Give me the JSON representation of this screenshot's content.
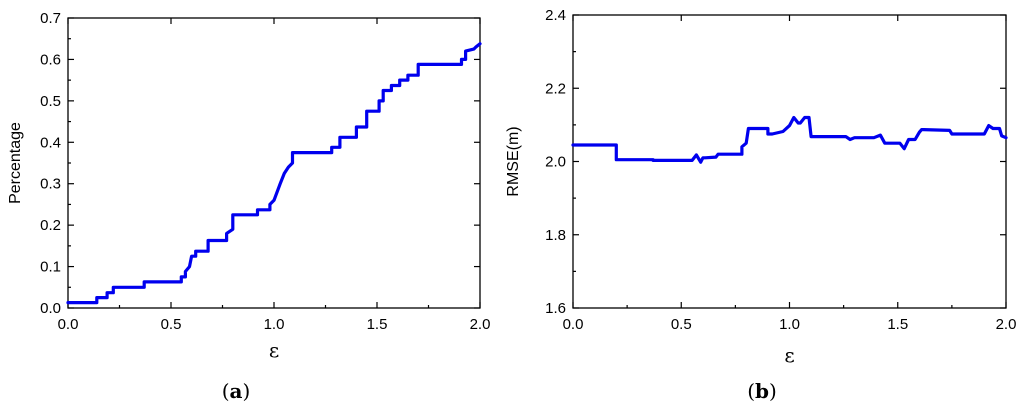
{
  "panels": [
    {
      "caption_letter": "a",
      "chart_data": {
        "type": "line",
        "title": "",
        "xlabel": "ε",
        "ylabel": "Percentage",
        "xlim": [
          0.0,
          2.0
        ],
        "ylim": [
          0.0,
          0.7
        ],
        "xticks": [
          0.0,
          0.5,
          1.0,
          1.5,
          2.0
        ],
        "xtick_labels": [
          "0.0",
          "0.5",
          "1.0",
          "1.5",
          "2.0"
        ],
        "yticks": [
          0.0,
          0.1,
          0.2,
          0.3,
          0.4,
          0.5,
          0.6,
          0.7
        ],
        "ytick_labels": [
          "0.0",
          "0.1",
          "0.2",
          "0.3",
          "0.4",
          "0.5",
          "0.6",
          "0.7"
        ],
        "grid": false,
        "series": [
          {
            "color": "#0000ee",
            "x": [
              0.0,
              0.14,
              0.14,
              0.19,
              0.19,
              0.22,
              0.22,
              0.37,
              0.37,
              0.55,
              0.55,
              0.57,
              0.57,
              0.59,
              0.6,
              0.62,
              0.62,
              0.68,
              0.68,
              0.77,
              0.77,
              0.8,
              0.8,
              0.92,
              0.92,
              0.98,
              0.98,
              1.0,
              1.03,
              1.05,
              1.07,
              1.09,
              1.09,
              1.28,
              1.28,
              1.32,
              1.32,
              1.4,
              1.4,
              1.45,
              1.45,
              1.51,
              1.51,
              1.53,
              1.53,
              1.57,
              1.57,
              1.61,
              1.61,
              1.65,
              1.65,
              1.7,
              1.7,
              1.91,
              1.91,
              1.93,
              1.93,
              1.97,
              1.98,
              2.0
            ],
            "y": [
              0.013,
              0.013,
              0.025,
              0.025,
              0.037,
              0.037,
              0.05,
              0.05,
              0.063,
              0.063,
              0.075,
              0.075,
              0.088,
              0.1,
              0.125,
              0.125,
              0.137,
              0.137,
              0.163,
              0.163,
              0.18,
              0.19,
              0.225,
              0.225,
              0.237,
              0.237,
              0.25,
              0.26,
              0.3,
              0.325,
              0.34,
              0.35,
              0.375,
              0.375,
              0.388,
              0.388,
              0.412,
              0.412,
              0.437,
              0.437,
              0.475,
              0.475,
              0.5,
              0.5,
              0.525,
              0.525,
              0.537,
              0.537,
              0.55,
              0.55,
              0.562,
              0.562,
              0.588,
              0.588,
              0.6,
              0.6,
              0.62,
              0.625,
              0.63,
              0.638
            ]
          }
        ]
      }
    },
    {
      "caption_letter": "b",
      "chart_data": {
        "type": "line",
        "title": "",
        "xlabel": "ε",
        "ylabel": "RMSE(m)",
        "xlim": [
          0.0,
          2.0
        ],
        "ylim": [
          1.6,
          2.4
        ],
        "xticks": [
          0.0,
          0.5,
          1.0,
          1.5,
          2.0
        ],
        "xtick_labels": [
          "0.0",
          "0.5",
          "1.0",
          "1.5",
          "2.0"
        ],
        "yticks": [
          1.6,
          1.8,
          2.0,
          2.2,
          2.4
        ],
        "ytick_labels": [
          "1.6",
          "1.8",
          "2.0",
          "2.2",
          "2.4"
        ],
        "grid": false,
        "series": [
          {
            "color": "#0000ee",
            "x": [
              0.0,
              0.2,
              0.2,
              0.37,
              0.37,
              0.55,
              0.57,
              0.59,
              0.6,
              0.61,
              0.66,
              0.67,
              0.7,
              0.7,
              0.78,
              0.78,
              0.8,
              0.81,
              0.9,
              0.9,
              0.92,
              0.97,
              1.0,
              1.02,
              1.04,
              1.05,
              1.07,
              1.09,
              1.1,
              1.12,
              1.26,
              1.28,
              1.3,
              1.39,
              1.42,
              1.44,
              1.51,
              1.53,
              1.55,
              1.58,
              1.6,
              1.61,
              1.62,
              1.74,
              1.75,
              1.77,
              1.9,
              1.92,
              1.94,
              1.97,
              1.98,
              2.0
            ],
            "y": [
              2.045,
              2.045,
              2.005,
              2.005,
              2.003,
              2.003,
              2.018,
              1.998,
              2.01,
              2.01,
              2.012,
              2.02,
              2.02,
              2.02,
              2.02,
              2.04,
              2.05,
              2.09,
              2.09,
              2.075,
              2.075,
              2.082,
              2.098,
              2.12,
              2.105,
              2.105,
              2.12,
              2.12,
              2.068,
              2.068,
              2.068,
              2.06,
              2.065,
              2.065,
              2.072,
              2.05,
              2.05,
              2.035,
              2.06,
              2.06,
              2.08,
              2.087,
              2.087,
              2.085,
              2.075,
              2.075,
              2.075,
              2.098,
              2.09,
              2.09,
              2.07,
              2.065
            ]
          }
        ]
      }
    }
  ]
}
